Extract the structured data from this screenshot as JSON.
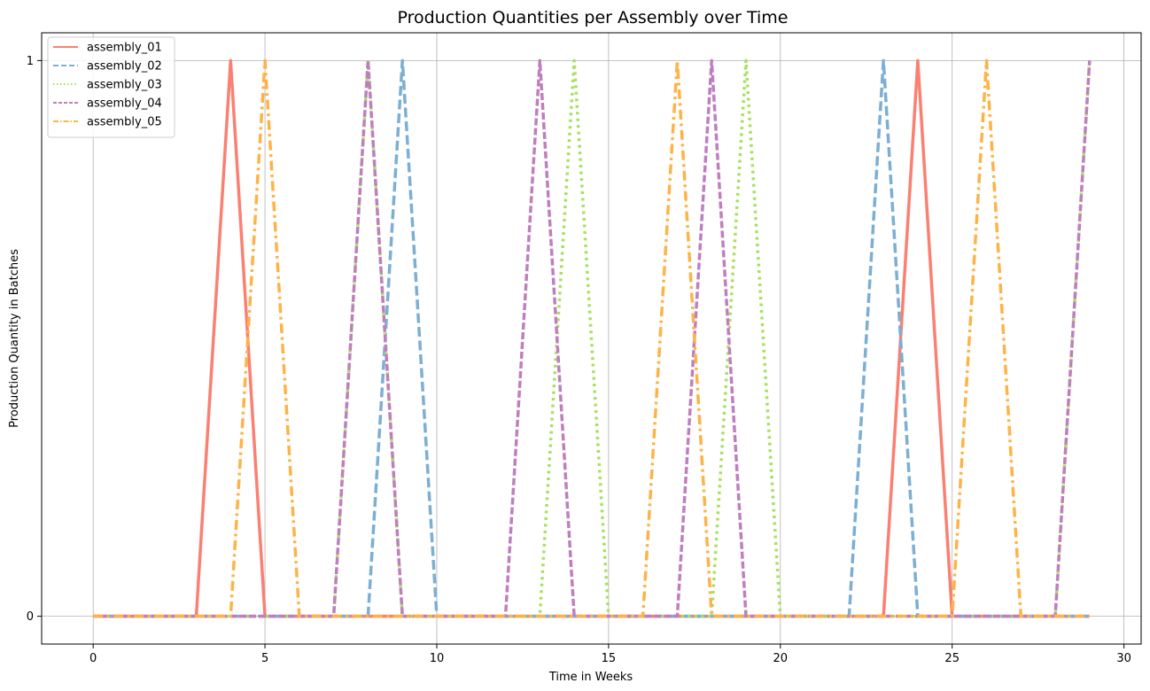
{
  "chart_data": {
    "type": "line",
    "title": "Production Quantities per Assembly over Time",
    "xlabel": "Time in Weeks",
    "ylabel": "Production Quantity in Batches",
    "xlim": [
      -1.5,
      30.5
    ],
    "ylim": [
      -0.05,
      1.05
    ],
    "xticks": [
      0,
      5,
      10,
      15,
      20,
      25,
      30
    ],
    "yticks": [
      0,
      1
    ],
    "grid": true,
    "legend_position": "top-left",
    "x": [
      0,
      1,
      2,
      3,
      4,
      5,
      6,
      7,
      8,
      9,
      10,
      11,
      12,
      13,
      14,
      15,
      16,
      17,
      18,
      19,
      20,
      21,
      22,
      23,
      24,
      25,
      26,
      27,
      28,
      29
    ],
    "series": [
      {
        "name": "assembly_01",
        "color": "#fa8072",
        "dash": "solid",
        "values": [
          0,
          0,
          0,
          0,
          1,
          0,
          0,
          0,
          0,
          0,
          0,
          0,
          0,
          0,
          0,
          0,
          0,
          0,
          0,
          0,
          0,
          0,
          0,
          0,
          1,
          0,
          0,
          0,
          0,
          0
        ]
      },
      {
        "name": "assembly_02",
        "color": "#7bafd4",
        "dash": "dashed",
        "values": [
          0,
          0,
          0,
          0,
          0,
          0,
          0,
          0,
          0,
          1,
          0,
          0,
          0,
          0,
          0,
          0,
          0,
          0,
          0,
          0,
          0,
          0,
          0,
          1,
          0,
          0,
          0,
          0,
          0,
          0
        ]
      },
      {
        "name": "assembly_03",
        "color": "#a8e05f",
        "dash": "dotted",
        "values": [
          0,
          0,
          0,
          0,
          0,
          0,
          0,
          0,
          1,
          0,
          0,
          0,
          0,
          0,
          1,
          0,
          0,
          0,
          0,
          1,
          0,
          0,
          0,
          0,
          0,
          0,
          0,
          0,
          0,
          1
        ]
      },
      {
        "name": "assembly_04",
        "color": "#bf7fbf",
        "dash": "dashed-short",
        "values": [
          0,
          0,
          0,
          0,
          0,
          0,
          0,
          0,
          1,
          0,
          0,
          0,
          0,
          1,
          0,
          0,
          0,
          0,
          1,
          0,
          0,
          0,
          0,
          0,
          0,
          0,
          0,
          0,
          0,
          1
        ]
      },
      {
        "name": "assembly_05",
        "color": "#ffb347",
        "dash": "dashdot",
        "values": [
          0,
          0,
          0,
          0,
          0,
          1,
          0,
          0,
          0,
          0,
          0,
          0,
          0,
          0,
          0,
          0,
          0,
          1,
          0,
          0,
          0,
          0,
          0,
          0,
          0,
          0,
          1,
          0,
          0,
          0
        ]
      }
    ]
  }
}
